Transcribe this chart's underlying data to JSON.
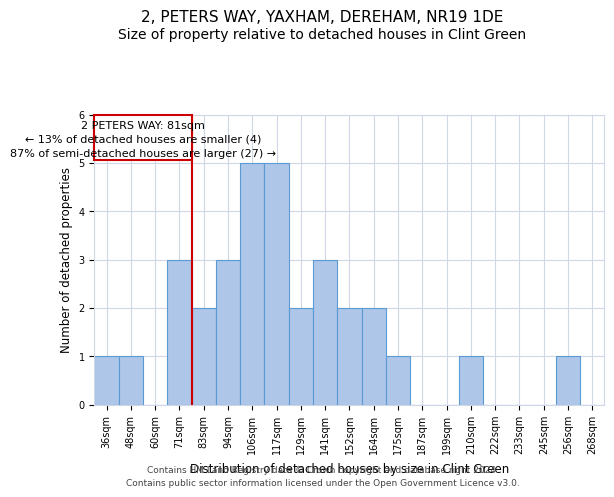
{
  "title": "2, PETERS WAY, YAXHAM, DEREHAM, NR19 1DE",
  "subtitle": "Size of property relative to detached houses in Clint Green",
  "xlabel": "Distribution of detached houses by size in Clint Green",
  "ylabel": "Number of detached properties",
  "categories": [
    "36sqm",
    "48sqm",
    "60sqm",
    "71sqm",
    "83sqm",
    "94sqm",
    "106sqm",
    "117sqm",
    "129sqm",
    "141sqm",
    "152sqm",
    "164sqm",
    "175sqm",
    "187sqm",
    "199sqm",
    "210sqm",
    "222sqm",
    "233sqm",
    "245sqm",
    "256sqm",
    "268sqm"
  ],
  "values": [
    1,
    1,
    0,
    3,
    2,
    3,
    5,
    5,
    2,
    3,
    2,
    2,
    1,
    0,
    0,
    1,
    0,
    0,
    0,
    1,
    0
  ],
  "bar_color": "#aec6e8",
  "bar_edge_color": "#5b9bd5",
  "red_line_x": 3.5,
  "red_line_color": "#cc0000",
  "annotation_box_color": "#ffffff",
  "annotation_border_color": "#cc0000",
  "annotation_text_line1": "2 PETERS WAY: 81sqm",
  "annotation_text_line2": "← 13% of detached houses are smaller (4)",
  "annotation_text_line3": "87% of semi-detached houses are larger (27) →",
  "ylim": [
    0,
    6
  ],
  "yticks": [
    0,
    1,
    2,
    3,
    4,
    5,
    6
  ],
  "footer_line1": "Contains HM Land Registry data © Crown copyright and database right 2024.",
  "footer_line2": "Contains public sector information licensed under the Open Government Licence v3.0.",
  "bg_color": "#ffffff",
  "grid_color": "#d0d8e8",
  "title_fontsize": 11,
  "subtitle_fontsize": 10,
  "axis_label_fontsize": 8.5,
  "tick_fontsize": 7,
  "footer_fontsize": 6.5,
  "annotation_fontsize": 8
}
